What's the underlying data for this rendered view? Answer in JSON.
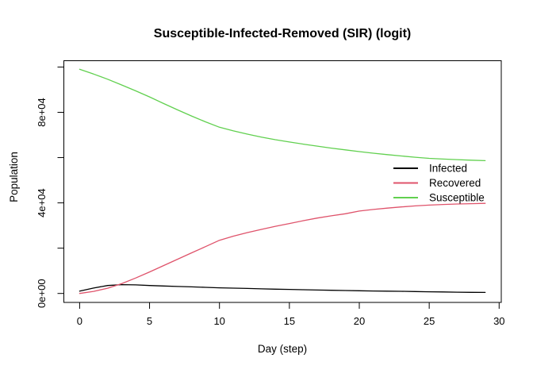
{
  "title": "Susceptible-Infected-Removed (SIR) (logit)",
  "x_axis": {
    "label": "Day (step)",
    "ticks": [
      {
        "v": 0,
        "label": "0"
      },
      {
        "v": 5,
        "label": "5"
      },
      {
        "v": 10,
        "label": "10"
      },
      {
        "v": 15,
        "label": "15"
      },
      {
        "v": 20,
        "label": "20"
      },
      {
        "v": 25,
        "label": "25"
      },
      {
        "v": 30,
        "label": "30"
      }
    ]
  },
  "y_axis": {
    "label": "Population",
    "ticks": [
      {
        "v": 0,
        "label": "0e+00"
      },
      {
        "v": 20000,
        "label": ""
      },
      {
        "v": 40000,
        "label": "4e+04"
      },
      {
        "v": 60000,
        "label": ""
      },
      {
        "v": 80000,
        "label": "8e+04"
      },
      {
        "v": 100000,
        "label": ""
      }
    ]
  },
  "legend": {
    "items": [
      {
        "label": "Infected",
        "color": "#000000"
      },
      {
        "label": "Recovered",
        "color": "#DF536B"
      },
      {
        "label": "Susceptible",
        "color": "#61D04F"
      }
    ]
  },
  "chart_data": {
    "type": "line",
    "title": "Susceptible-Infected-Removed (SIR) (logit)",
    "xlabel": "Day (step)",
    "ylabel": "Population",
    "xlim": [
      0,
      30
    ],
    "ylim": [
      0,
      100000
    ],
    "grid": false,
    "legend_position": "right-center",
    "x": [
      0,
      1,
      2,
      3,
      4,
      5,
      6,
      7,
      8,
      9,
      10,
      11,
      12,
      13,
      14,
      15,
      16,
      17,
      18,
      19,
      20,
      21,
      22,
      23,
      24,
      25,
      26,
      27,
      28,
      29
    ],
    "series": [
      {
        "name": "Infected",
        "color": "#000000",
        "values": [
          1000,
          2400,
          3500,
          3900,
          3800,
          3500,
          3300,
          3100,
          2900,
          2700,
          2500,
          2350,
          2200,
          2050,
          1900,
          1800,
          1650,
          1500,
          1400,
          1300,
          1200,
          1100,
          1000,
          950,
          850,
          750,
          650,
          550,
          500,
          450
        ]
      },
      {
        "name": "Recovered",
        "color": "#DF536B",
        "values": [
          0,
          900,
          2300,
          4300,
          6800,
          9500,
          12300,
          15100,
          17900,
          20700,
          23500,
          25300,
          26900,
          28300,
          29650,
          30900,
          32150,
          33300,
          34300,
          35200,
          36400,
          37100,
          37700,
          38200,
          38650,
          39000,
          39300,
          39500,
          39650,
          39800
        ]
      },
      {
        "name": "Susceptible",
        "color": "#61D04F",
        "values": [
          99000,
          96900,
          94600,
          92100,
          89500,
          86800,
          83900,
          81100,
          78400,
          75800,
          73400,
          71800,
          70350,
          69050,
          67900,
          66900,
          65950,
          65050,
          64200,
          63400,
          62650,
          61950,
          61300,
          60700,
          60150,
          59650,
          59350,
          59100,
          58850,
          58650
        ]
      }
    ]
  }
}
